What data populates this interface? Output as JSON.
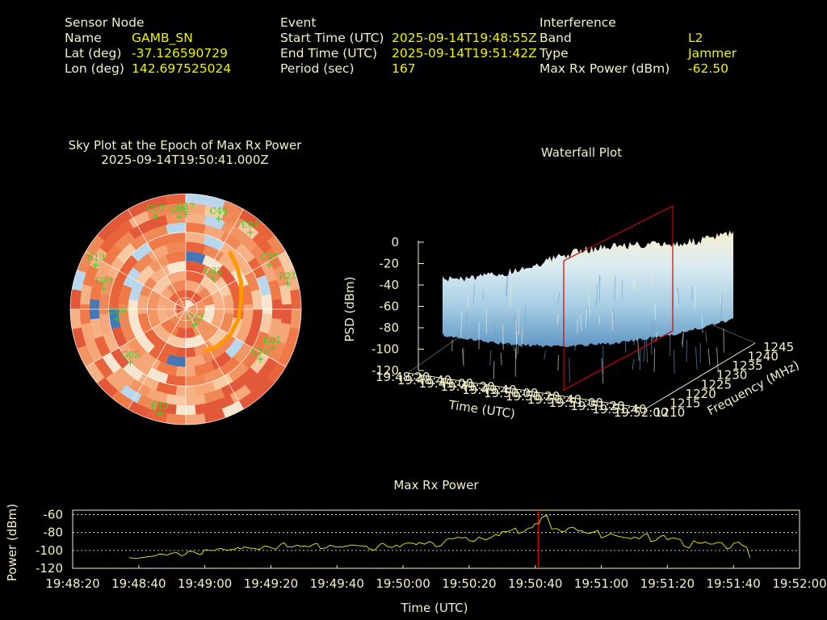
{
  "header": {
    "sensor": {
      "heading": "Sensor Node",
      "name_label": "Name",
      "name_value": "GAMB_SN",
      "lat_label": "Lat (deg)",
      "lat_value": "-37.126590729",
      "lon_label": "Lon (deg)",
      "lon_value": "142.697525024"
    },
    "event": {
      "heading": "Event",
      "start_label": "Start Time (UTC)",
      "start_value": "2025-09-14T19:48:55Z",
      "end_label": "End Time (UTC)",
      "end_value": "2025-09-14T19:51:42Z",
      "period_label": "Period (sec)",
      "period_value": "167"
    },
    "interference": {
      "heading": "Interference",
      "band_label": "Band",
      "band_value": "L2",
      "type_label": "Type",
      "type_value": "Jammer",
      "power_label": "Max Rx Power (dBm)",
      "power_value": "-62.50"
    }
  },
  "colors": {
    "label": "#f3f0c8",
    "value": "#f2f200",
    "sat": "#22dd22",
    "track": "#ff9900",
    "marker": "#d00000",
    "line": "#f2f200"
  },
  "chart_data": [
    {
      "type": "scatter",
      "kind": "polar-sky-plot",
      "title": "Sky Plot at the Epoch of Max Rx Power",
      "subtitle": "2025-09-14T19:50:41.000Z",
      "satellites": [
        {
          "id": "C07",
          "az": -18,
          "el": 14
        },
        {
          "id": "G08",
          "az": -4,
          "el": 18
        },
        {
          "id": "G17",
          "az": 0,
          "el": 16
        },
        {
          "id": "C44",
          "az": 20,
          "el": 15
        },
        {
          "id": "E04",
          "az": 40,
          "el": 12
        },
        {
          "id": "C35",
          "az": 62,
          "el": 16
        },
        {
          "id": "R21",
          "az": 76,
          "el": 8
        },
        {
          "id": "E01",
          "az": 114,
          "el": 16
        },
        {
          "id": "C10",
          "az": 124,
          "el": 20
        },
        {
          "id": "E13",
          "az": 194,
          "el": 6
        },
        {
          "id": "G05",
          "az": 226,
          "el": 30
        },
        {
          "id": "C09",
          "az": 262,
          "el": 36
        },
        {
          "id": "E03",
          "az": 284,
          "el": 24
        },
        {
          "id": "R13",
          "az": 296,
          "el": 12
        },
        {
          "id": "G32",
          "az": 42,
          "el": 58
        },
        {
          "id": "C22",
          "az": 150,
          "el": 76
        }
      ],
      "track": [
        [
          38,
          34
        ],
        [
          50,
          38
        ],
        [
          64,
          42
        ],
        [
          80,
          46
        ],
        [
          100,
          48
        ],
        [
          120,
          50
        ],
        [
          140,
          52
        ],
        [
          154,
          54
        ]
      ]
    },
    {
      "type": "area",
      "kind": "3d-waterfall",
      "title": "Waterfall Plot",
      "zlabel": "PSD (dBm)",
      "xlabel": "Time (UTC)",
      "ylabel": "Frequency (MHz)",
      "zlim": [
        -120,
        0
      ],
      "zticks": [
        0,
        -20,
        -40,
        -60,
        -80,
        -100,
        -120
      ],
      "xticks": [
        "19:48:20",
        "19:48:40",
        "19:49:00",
        "19:49:20",
        "19:49:40",
        "19:50:00",
        "19:50:20",
        "19:50:40",
        "19:51:00",
        "19:51:20",
        "19:51:40",
        "19:52:00"
      ],
      "yticks": [
        1210,
        1215,
        1220,
        1225,
        1230,
        1235,
        1240,
        1245
      ],
      "marker_time": "19:50:41"
    },
    {
      "type": "line",
      "title": "Max Rx Power",
      "xlabel": "Time (UTC)",
      "ylabel": "Power (dBm)",
      "ylim": [
        -120,
        -55
      ],
      "yticks": [
        -60,
        -80,
        -100,
        -120
      ],
      "xlim_sec": [
        0,
        220
      ],
      "xticks": [
        "19:48:20",
        "19:48:40",
        "19:49:00",
        "19:49:20",
        "19:49:40",
        "19:50:00",
        "19:50:20",
        "19:50:40",
        "19:51:00",
        "19:51:20",
        "19:51:40",
        "19:52:00"
      ],
      "grid": true,
      "marker_sec": 141,
      "series": [
        {
          "x_sec": [
            17,
            19,
            25,
            27,
            30,
            33,
            35,
            38,
            40,
            43,
            45,
            48,
            50,
            52,
            55,
            58,
            60,
            63,
            65,
            68,
            70,
            73,
            75,
            78,
            80,
            83,
            85,
            88,
            90,
            93,
            95,
            98,
            100,
            103,
            105,
            108,
            110,
            113,
            115,
            118,
            120,
            123,
            125,
            128,
            130,
            133,
            135,
            138,
            140,
            142,
            145,
            148,
            150,
            153,
            155,
            158,
            160,
            163,
            165,
            168,
            170,
            173,
            175,
            178,
            180,
            183,
            185,
            188,
            190,
            193,
            195,
            198,
            200,
            203,
            205
          ],
          "values": [
            -108,
            -109,
            -106,
            -104,
            -103,
            -106,
            -101,
            -104,
            -99,
            -100,
            -98,
            -99,
            -97,
            -96,
            -98,
            -95,
            -97,
            -93,
            -96,
            -94,
            -95,
            -93,
            -98,
            -94,
            -96,
            -95,
            -94,
            -95,
            -99,
            -93,
            -95,
            -94,
            -93,
            -92,
            -91,
            -90,
            -96,
            -88,
            -87,
            -86,
            -89,
            -85,
            -88,
            -82,
            -79,
            -77,
            -81,
            -75,
            -70,
            -63,
            -76,
            -79,
            -75,
            -78,
            -80,
            -79,
            -86,
            -81,
            -84,
            -86,
            -85,
            -82,
            -90,
            -84,
            -88,
            -87,
            -95,
            -89,
            -92,
            -93,
            -91,
            -98,
            -92,
            -95,
            -108
          ]
        }
      ]
    }
  ]
}
